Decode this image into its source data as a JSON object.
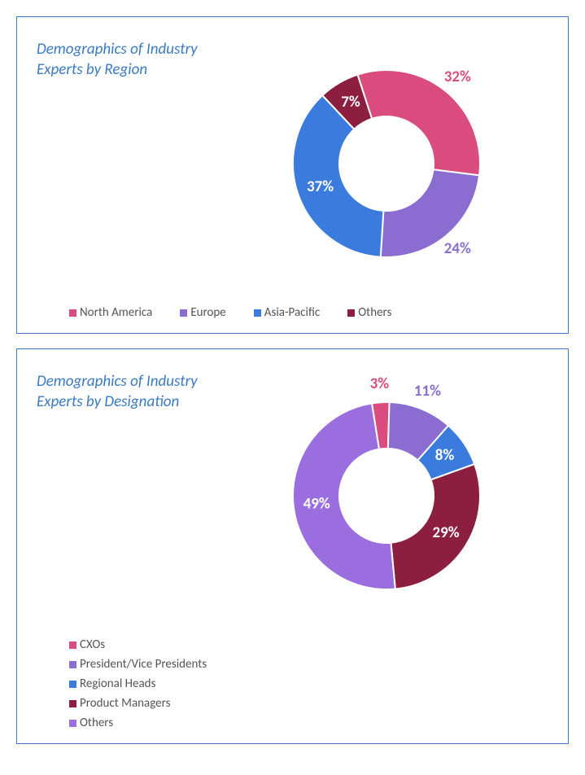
{
  "panels": [
    {
      "title_lines": [
        "Demographics of Industry",
        "Experts by Region"
      ],
      "title_color": "#3b7bbf",
      "title_fontsize": 19,
      "chart": {
        "type": "donut",
        "start_angle_deg": -18,
        "outer_radius": 115,
        "inner_radius": 58,
        "background_color": "#ffffff",
        "label_fontsize": 19,
        "slices": [
          {
            "label": "North America",
            "value": 32,
            "display": "32%",
            "color": "#d94c7d",
            "label_color": "#d94c7d",
            "label_pos": "outside"
          },
          {
            "label": "Europe",
            "value": 24,
            "display": "24%",
            "color": "#8b6dd1",
            "label_color": "#8b6dd1",
            "label_pos": "outside"
          },
          {
            "label": "Asia-Pacific",
            "value": 37,
            "display": "37%",
            "color": "#3b7bdd",
            "label_color": "#ffffff",
            "label_pos": "inside"
          },
          {
            "label": "Others",
            "value": 7,
            "display": "7%",
            "color": "#8c1e3f",
            "label_color": "#ffffff",
            "label_pos": "inside"
          }
        ]
      },
      "legend_cols": 4
    },
    {
      "title_lines": [
        "Demographics of Industry",
        "Experts by Designation"
      ],
      "title_color": "#3b7bbf",
      "title_fontsize": 19,
      "chart": {
        "type": "donut",
        "start_angle_deg": -9,
        "outer_radius": 115,
        "inner_radius": 58,
        "background_color": "#ffffff",
        "label_fontsize": 19,
        "slices": [
          {
            "label": "CXOs",
            "value": 3,
            "display": "3%",
            "color": "#d94c7d",
            "label_color": "#d94c7d",
            "label_pos": "outside"
          },
          {
            "label": "President/Vice Presidents",
            "value": 11,
            "display": "11%",
            "color": "#8b6dd1",
            "label_color": "#8b6dd1",
            "label_pos": "outside"
          },
          {
            "label": "Regional Heads",
            "value": 8,
            "display": "8%",
            "color": "#3b7bdd",
            "label_color": "#ffffff",
            "label_pos": "inside"
          },
          {
            "label": "Product Managers",
            "value": 29,
            "display": "29%",
            "color": "#8c1e3f",
            "label_color": "#ffffff",
            "label_pos": "inside"
          },
          {
            "label": "Others",
            "value": 49,
            "display": "49%",
            "color": "#9b6ee0",
            "label_color": "#ffffff",
            "label_pos": "inside"
          }
        ]
      },
      "legend_cols": 2
    }
  ]
}
